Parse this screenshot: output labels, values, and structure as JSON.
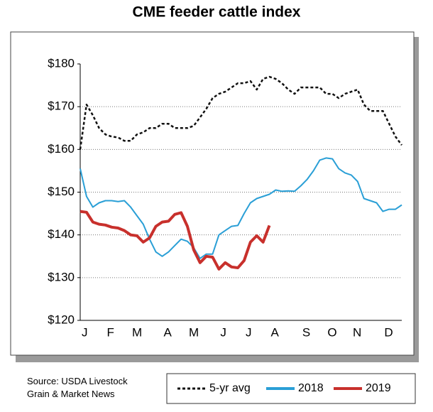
{
  "chart_data": {
    "type": "line",
    "title": "CME feeder cattle index",
    "source": "Source: USDA Livestock\nGrain & Market News",
    "categories": [
      "J",
      null,
      null,
      null,
      "F",
      null,
      null,
      null,
      "M",
      null,
      null,
      null,
      null,
      "A",
      null,
      null,
      null,
      "M",
      null,
      null,
      null,
      null,
      "J",
      null,
      null,
      null,
      "J",
      null,
      null,
      null,
      "A",
      null,
      null,
      null,
      null,
      "S",
      null,
      null,
      null,
      "O",
      null,
      null,
      null,
      "N",
      null,
      null,
      null,
      null,
      "D",
      null,
      null,
      null
    ],
    "series": [
      {
        "name": "5-yr avg",
        "color": "#111111",
        "dashed": true,
        "values": [
          160,
          170.5,
          168,
          165,
          163.5,
          163,
          162.8,
          162,
          162,
          163.5,
          164,
          165,
          165,
          166,
          166,
          165,
          165,
          165,
          165.5,
          167.5,
          169.5,
          172,
          173,
          173.5,
          174.5,
          175.5,
          175.5,
          176,
          174,
          176.5,
          177,
          176.5,
          175.5,
          174,
          173,
          174.5,
          174.5,
          174.5,
          174.5,
          173,
          173,
          172,
          173,
          173.5,
          174,
          170.5,
          169,
          169,
          169,
          166,
          163,
          161
        ]
      },
      {
        "name": "2018",
        "color": "#2a9fd6",
        "dashed": false,
        "values": [
          155.5,
          149,
          146.5,
          147.5,
          148,
          148,
          147.8,
          148,
          146.5,
          144.5,
          142.5,
          139,
          136,
          135,
          136,
          137.5,
          139,
          138.5,
          137,
          134.5,
          135.5,
          135.5,
          140,
          141,
          142,
          142.2,
          145,
          147.5,
          148.5,
          149,
          149.5,
          150.5,
          150.2,
          150.3,
          150.2,
          151.5,
          153,
          155,
          157.5,
          158,
          157.8,
          155.5,
          154.5,
          154,
          152.5,
          148.5,
          148,
          147.5,
          145.5,
          146,
          146,
          147
        ]
      },
      {
        "name": "2019",
        "color": "#c8302c",
        "dashed": false,
        "values": [
          145.5,
          145.3,
          143,
          142.5,
          142.3,
          141.8,
          141.6,
          141,
          140,
          139.8,
          138.3,
          139.3,
          142,
          143,
          143.2,
          144.8,
          145.2,
          142,
          136.5,
          133.5,
          135,
          134.8,
          132,
          133.5,
          132.5,
          132.3,
          134,
          138.3,
          139.8,
          138.3,
          142.2,
          null,
          null,
          null,
          null,
          null,
          null,
          null,
          null,
          null,
          null,
          null,
          null,
          null,
          null,
          null,
          null,
          null,
          null,
          null,
          null,
          null
        ]
      }
    ],
    "ylim": [
      120,
      180
    ],
    "yticks": [
      {
        "value": 120,
        "label": "$120"
      },
      {
        "value": 130,
        "label": "$130"
      },
      {
        "value": 140,
        "label": "$140"
      },
      {
        "value": 150,
        "label": "$150"
      },
      {
        "value": 160,
        "label": "$160"
      },
      {
        "value": 170,
        "label": "$170"
      },
      {
        "value": 180,
        "label": "$180"
      }
    ],
    "grid": true
  }
}
